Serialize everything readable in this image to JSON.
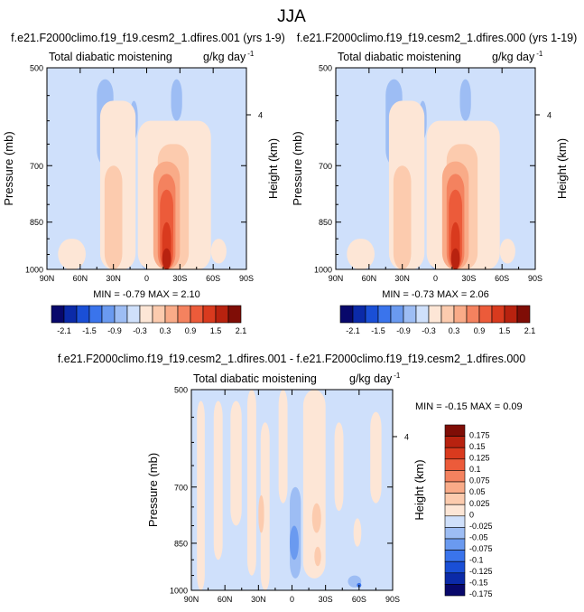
{
  "figure": {
    "title": "JJA"
  },
  "colors": {
    "palette": [
      "#08086b",
      "#0b2aa8",
      "#1a4fd6",
      "#3a74ec",
      "#6a9af0",
      "#9dbdf4",
      "#cfe0fb",
      "#fde6d6",
      "#fccbae",
      "#f9ab88",
      "#f4825f",
      "#ec5b3a",
      "#d93a1e",
      "#b8220f",
      "#7f0d06"
    ],
    "diff_palette": [
      "#08086b",
      "#0b2aa8",
      "#1a4fd6",
      "#3a74ec",
      "#6a9af0",
      "#9dbdf4",
      "#cfe0fb",
      "#fde6d6",
      "#fccbae",
      "#f9ab88",
      "#f4825f",
      "#ec5b3a",
      "#d93a1e",
      "#b8220f",
      "#7f0d06"
    ]
  },
  "chart_data": [
    {
      "type": "heatmap",
      "title": "f.e21.F2000climo.f19_f19.cesm2_1.dfires.001 (yrs 1-9)",
      "left_label": "Total diabatic moistening",
      "units": "g/kg day",
      "units_exp": "-1",
      "ylabel": "Pressure (mb)",
      "right_label": "Height (km)",
      "right_tick": "4",
      "x_ticks": [
        "90N",
        "60N",
        "30N",
        "0",
        "30S",
        "60S",
        "90S"
      ],
      "y_ticks": [
        "500",
        "700",
        "850",
        "1000"
      ],
      "xlim": [
        90,
        -90
      ],
      "ylim": [
        1000,
        500
      ],
      "stats": "MIN = -0.79  MAX =  2.10",
      "cells": [
        {
          "lat": [
            90,
            -90
          ],
          "p": [
            500,
            1000
          ],
          "level": 6
        },
        {
          "lat": [
            45,
            30
          ],
          "p": [
            520,
            700
          ],
          "level": 5
        },
        {
          "lat": [
            15,
            8
          ],
          "p": [
            560,
            640
          ],
          "level": 5
        },
        {
          "lat": [
            6,
            -4
          ],
          "p": [
            700,
            1000
          ],
          "level": 5
        },
        {
          "lat": [
            -22,
            -32
          ],
          "p": [
            520,
            600
          ],
          "level": 5
        },
        {
          "lat": [
            42,
            10
          ],
          "p": [
            560,
            1000
          ],
          "level": 7
        },
        {
          "lat": [
            8,
            -58
          ],
          "p": [
            600,
            1000
          ],
          "level": 7
        },
        {
          "lat": [
            -58,
            -72
          ],
          "p": [
            900,
            980
          ],
          "level": 7
        },
        {
          "lat": [
            80,
            55
          ],
          "p": [
            900,
            1000
          ],
          "level": 7
        },
        {
          "lat": [
            38,
            22
          ],
          "p": [
            700,
            1000
          ],
          "level": 8
        },
        {
          "lat": [
            -10,
            -38
          ],
          "p": [
            650,
            1000
          ],
          "level": 8
        },
        {
          "lat": [
            -6,
            -30
          ],
          "p": [
            690,
            1000
          ],
          "level": 9
        },
        {
          "lat": [
            -10,
            -26
          ],
          "p": [
            720,
            1000
          ],
          "level": 10
        },
        {
          "lat": [
            -12,
            -24
          ],
          "p": [
            760,
            1000
          ],
          "level": 11
        },
        {
          "lat": [
            -14,
            -22
          ],
          "p": [
            850,
            1000
          ],
          "level": 12
        },
        {
          "lat": [
            -14,
            -22
          ],
          "p": [
            930,
            1000
          ],
          "level": 13
        }
      ]
    },
    {
      "type": "heatmap",
      "title": "f.e21.F2000climo.f19_f19.cesm2_1.dfires.000 (yrs 1-19)",
      "left_label": "Total diabatic moistening",
      "units": "g/kg day",
      "units_exp": "-1",
      "ylabel": "Pressure (mb)",
      "right_label": "Height (km)",
      "right_tick": "4",
      "x_ticks": [
        "90N",
        "60N",
        "30N",
        "0",
        "30S",
        "60S",
        "90S"
      ],
      "y_ticks": [
        "500",
        "700",
        "850",
        "1000"
      ],
      "xlim": [
        90,
        -90
      ],
      "ylim": [
        1000,
        500
      ],
      "stats": "MIN = -0.73  MAX =  2.06",
      "cells": [
        {
          "lat": [
            90,
            -90
          ],
          "p": [
            500,
            1000
          ],
          "level": 6
        },
        {
          "lat": [
            45,
            30
          ],
          "p": [
            520,
            700
          ],
          "level": 5
        },
        {
          "lat": [
            15,
            8
          ],
          "p": [
            560,
            640
          ],
          "level": 5
        },
        {
          "lat": [
            6,
            -4
          ],
          "p": [
            700,
            1000
          ],
          "level": 5
        },
        {
          "lat": [
            -22,
            -32
          ],
          "p": [
            520,
            600
          ],
          "level": 5
        },
        {
          "lat": [
            42,
            10
          ],
          "p": [
            560,
            1000
          ],
          "level": 7
        },
        {
          "lat": [
            8,
            -58
          ],
          "p": [
            600,
            1000
          ],
          "level": 7
        },
        {
          "lat": [
            -58,
            -72
          ],
          "p": [
            900,
            980
          ],
          "level": 7
        },
        {
          "lat": [
            80,
            55
          ],
          "p": [
            900,
            1000
          ],
          "level": 7
        },
        {
          "lat": [
            38,
            22
          ],
          "p": [
            700,
            1000
          ],
          "level": 8
        },
        {
          "lat": [
            -10,
            -38
          ],
          "p": [
            650,
            1000
          ],
          "level": 8
        },
        {
          "lat": [
            -6,
            -30
          ],
          "p": [
            690,
            1000
          ],
          "level": 9
        },
        {
          "lat": [
            -10,
            -26
          ],
          "p": [
            720,
            1000
          ],
          "level": 10
        },
        {
          "lat": [
            -12,
            -24
          ],
          "p": [
            760,
            1000
          ],
          "level": 11
        },
        {
          "lat": [
            -14,
            -22
          ],
          "p": [
            850,
            1000
          ],
          "level": 12
        },
        {
          "lat": [
            -14,
            -22
          ],
          "p": [
            930,
            1000
          ],
          "level": 13
        }
      ]
    },
    {
      "type": "heatmap",
      "title": "f.e21.F2000climo.f19_f19.cesm2_1.dfires.001 - f.e21.F2000climo.f19_f19.cesm2_1.dfires.000",
      "left_label": "Total diabatic moistening",
      "units": "g/kg day",
      "units_exp": "-1",
      "ylabel": "Pressure (mb)",
      "right_label": "Height (km)",
      "right_tick": "4",
      "x_ticks": [
        "90N",
        "60N",
        "30N",
        "0",
        "30S",
        "60S",
        "90S"
      ],
      "y_ticks": [
        "500",
        "700",
        "850",
        "1000"
      ],
      "xlim": [
        90,
        -90
      ],
      "ylim": [
        1000,
        500
      ],
      "stats": "MIN = -0.15  MAX =  0.09",
      "cells": [
        {
          "lat": [
            90,
            -90
          ],
          "p": [
            500,
            1000
          ],
          "level": 6
        },
        {
          "lat": [
            85,
            78
          ],
          "p": [
            520,
            1000
          ],
          "level": 7
        },
        {
          "lat": [
            70,
            62
          ],
          "p": [
            520,
            900
          ],
          "level": 7
        },
        {
          "lat": [
            55,
            45
          ],
          "p": [
            520,
            800
          ],
          "level": 7
        },
        {
          "lat": [
            40,
            32
          ],
          "p": [
            500,
            950
          ],
          "level": 7
        },
        {
          "lat": [
            28,
            20
          ],
          "p": [
            560,
            1000
          ],
          "level": 7
        },
        {
          "lat": [
            12,
            4
          ],
          "p": [
            500,
            740
          ],
          "level": 7
        },
        {
          "lat": [
            -10,
            -30
          ],
          "p": [
            500,
            960
          ],
          "level": 7
        },
        {
          "lat": [
            -38,
            -46
          ],
          "p": [
            560,
            760
          ],
          "level": 7
        },
        {
          "lat": [
            -55,
            -62
          ],
          "p": [
            780,
            860
          ],
          "level": 7
        },
        {
          "lat": [
            -70,
            -80
          ],
          "p": [
            540,
            740
          ],
          "level": 7
        },
        {
          "lat": [
            30,
            25
          ],
          "p": [
            720,
            820
          ],
          "level": 8
        },
        {
          "lat": [
            -18,
            -26
          ],
          "p": [
            740,
            820
          ],
          "level": 8
        },
        {
          "lat": [
            -20,
            -26
          ],
          "p": [
            860,
            920
          ],
          "level": 8
        },
        {
          "lat": [
            2,
            -8
          ],
          "p": [
            700,
            960
          ],
          "level": 5
        },
        {
          "lat": [
            2,
            -6
          ],
          "p": [
            800,
            900
          ],
          "level": 4
        },
        {
          "lat": [
            -50,
            -62
          ],
          "p": [
            950,
            990
          ],
          "level": 5
        },
        {
          "lat": [
            -58,
            -62
          ],
          "p": [
            975,
            990
          ],
          "level": 3
        }
      ]
    }
  ],
  "colorbar_main": {
    "labels": [
      "-2.1",
      "-1.5",
      "-0.9",
      "-0.3",
      "0.3",
      "0.9",
      "1.5",
      "2.1"
    ]
  },
  "colorbar_diff": {
    "labels": [
      "0.175",
      "0.15",
      "0.125",
      "0.1",
      "0.075",
      "0.05",
      "0.025",
      "0",
      "-0.025",
      "-0.05",
      "-0.075",
      "-0.1",
      "-0.125",
      "-0.15",
      "-0.175"
    ]
  }
}
